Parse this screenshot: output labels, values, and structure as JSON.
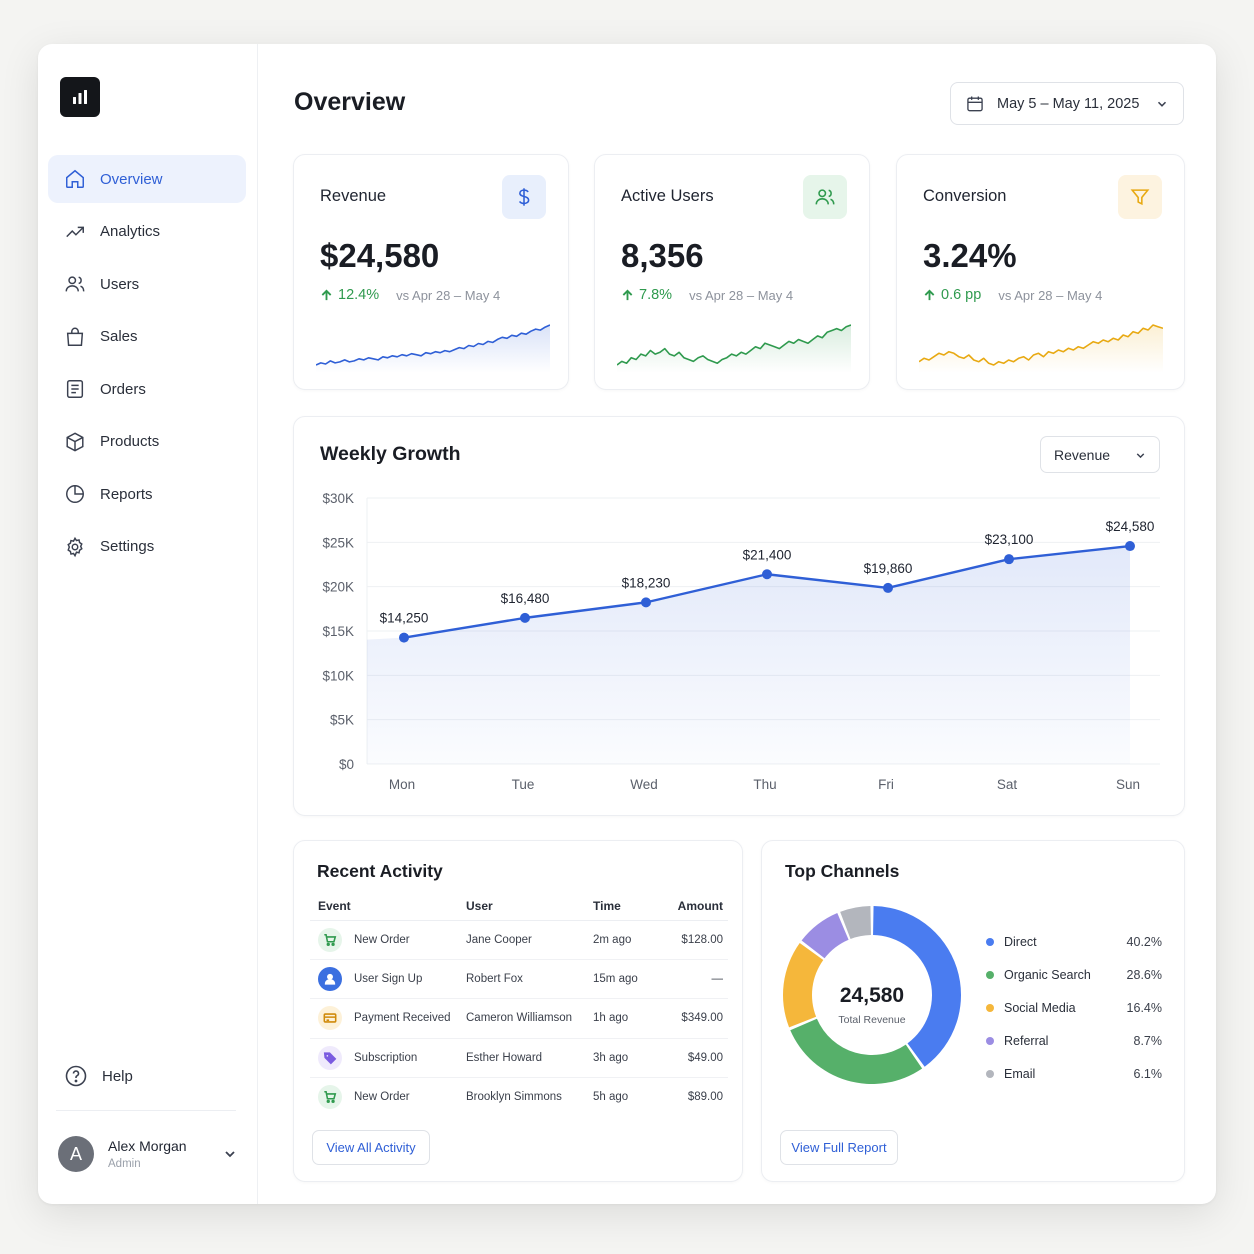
{
  "sidebar": {
    "items": [
      {
        "label": "Overview",
        "icon": "home-icon",
        "active": true
      },
      {
        "label": "Analytics",
        "icon": "trend-icon"
      },
      {
        "label": "Users",
        "icon": "users-icon"
      },
      {
        "label": "Sales",
        "icon": "bag-icon"
      },
      {
        "label": "Orders",
        "icon": "list-icon"
      },
      {
        "label": "Products",
        "icon": "box-icon"
      },
      {
        "label": "Reports",
        "icon": "pie-icon"
      },
      {
        "label": "Settings",
        "icon": "gear-icon"
      }
    ],
    "help_label": "Help",
    "user": {
      "initial": "A",
      "name": "Alex Morgan",
      "role": "Admin"
    }
  },
  "header": {
    "title": "Overview",
    "date_range": "May 5 – May 11, 2025"
  },
  "kpis": [
    {
      "title": "Revenue",
      "value": "$24,580",
      "delta": "12.4%",
      "compare": "vs Apr 28 – May 4",
      "icon": "dollar-icon",
      "color": "#2f5fd6",
      "bg": "#e8effc",
      "spark": [
        3,
        5,
        4,
        7,
        5,
        6,
        8,
        6,
        7,
        9,
        8,
        10,
        9,
        8,
        11,
        10,
        12,
        11,
        13,
        12,
        14,
        13,
        12,
        15,
        14,
        16,
        15,
        17,
        16,
        18,
        20,
        19,
        22,
        21,
        24,
        23,
        26,
        25,
        28,
        30,
        29,
        32,
        31,
        34,
        33,
        36,
        38,
        37,
        40,
        42
      ]
    },
    {
      "title": "Active Users",
      "value": "8,356",
      "delta": "7.8%",
      "compare": "vs Apr 28 – May 4",
      "icon": "users-icon",
      "color": "#2f9a4e",
      "bg": "#e6f5ea",
      "spark": [
        6,
        8,
        7,
        10,
        9,
        12,
        11,
        14,
        12,
        13,
        15,
        12,
        11,
        13,
        10,
        9,
        8,
        10,
        11,
        9,
        8,
        7,
        9,
        10,
        12,
        11,
        13,
        12,
        14,
        16,
        15,
        18,
        17,
        16,
        15,
        17,
        19,
        18,
        20,
        19,
        18,
        20,
        22,
        21,
        24,
        25,
        26,
        25,
        27,
        28
      ]
    },
    {
      "title": "Conversion",
      "value": "3.24%",
      "delta": "0.6 pp",
      "compare": "vs Apr 28 – May 4",
      "icon": "funnel-icon",
      "color": "#e8a912",
      "bg": "#fdf3e0",
      "spark": [
        10,
        12,
        11,
        13,
        15,
        14,
        16,
        15,
        13,
        12,
        14,
        11,
        10,
        12,
        9,
        8,
        10,
        9,
        11,
        10,
        12,
        13,
        11,
        14,
        15,
        13,
        16,
        15,
        17,
        16,
        18,
        17,
        19,
        18,
        20,
        22,
        21,
        23,
        22,
        24,
        23,
        26,
        25,
        28,
        27,
        30,
        29,
        32,
        31,
        30
      ]
    }
  ],
  "weekly": {
    "title": "Weekly Growth",
    "metric": "Revenue"
  },
  "chart_data": {
    "type": "line",
    "title": "Weekly Growth",
    "categories": [
      "Mon",
      "Tue",
      "Wed",
      "Thu",
      "Fri",
      "Sat",
      "Sun"
    ],
    "values": [
      14250,
      16480,
      18230,
      21400,
      19860,
      23100,
      24580
    ],
    "value_labels": [
      "$14,250",
      "$16,480",
      "$18,230",
      "$21,400",
      "$19,860",
      "$23,100",
      "$24,580"
    ],
    "ylim": [
      0,
      30000
    ],
    "yticks": [
      0,
      5000,
      10000,
      15000,
      20000,
      25000,
      30000
    ],
    "ytick_labels": [
      "$0",
      "$5K",
      "$10K",
      "$15K",
      "$20K",
      "$25K",
      "$30K"
    ],
    "grid": true,
    "color": "#2f5fd6"
  },
  "activity": {
    "title": "Recent Activity",
    "columns": [
      "Event",
      "User",
      "Time",
      "Amount"
    ],
    "rows": [
      {
        "event": "New Order",
        "user": "Jane Cooper",
        "time": "2m ago",
        "amount": "$128.00",
        "icon": "cart-icon",
        "color": "#2f9a4e",
        "bg": "#e6f5ea"
      },
      {
        "event": "User Sign Up",
        "user": "Robert Fox",
        "time": "15m ago",
        "amount": "—",
        "icon": "user-icon",
        "color": "#ffffff",
        "bg": "#3b6fe0"
      },
      {
        "event": "Payment Received",
        "user": "Cameron Williamson",
        "time": "1h ago",
        "amount": "$349.00",
        "icon": "card-icon",
        "color": "#d08a0a",
        "bg": "#fdf1d8"
      },
      {
        "event": "Subscription",
        "user": "Esther Howard",
        "time": "3h ago",
        "amount": "$49.00",
        "icon": "tag-icon",
        "color": "#7a5be0",
        "bg": "#efeafc"
      },
      {
        "event": "New Order",
        "user": "Brooklyn Simmons",
        "time": "5h ago",
        "amount": "$89.00",
        "icon": "cart-icon",
        "color": "#2f9a4e",
        "bg": "#e6f5ea"
      }
    ],
    "button": "View All Activity"
  },
  "channels": {
    "title": "Top Channels",
    "center_value": "24,580",
    "center_label": "Total Revenue",
    "button": "View Full Report",
    "items": [
      {
        "name": "Direct",
        "pct": "40.2%",
        "value": 40.2,
        "color": "#4a7cf0"
      },
      {
        "name": "Organic Search",
        "pct": "28.6%",
        "value": 28.6,
        "color": "#56b06a"
      },
      {
        "name": "Social Media",
        "pct": "16.4%",
        "value": 16.4,
        "color": "#f5b73b"
      },
      {
        "name": "Referral",
        "pct": "8.7%",
        "value": 8.7,
        "color": "#9b8de3"
      },
      {
        "name": "Email",
        "pct": "6.1%",
        "value": 6.1,
        "color": "#b3b6bd"
      }
    ]
  }
}
